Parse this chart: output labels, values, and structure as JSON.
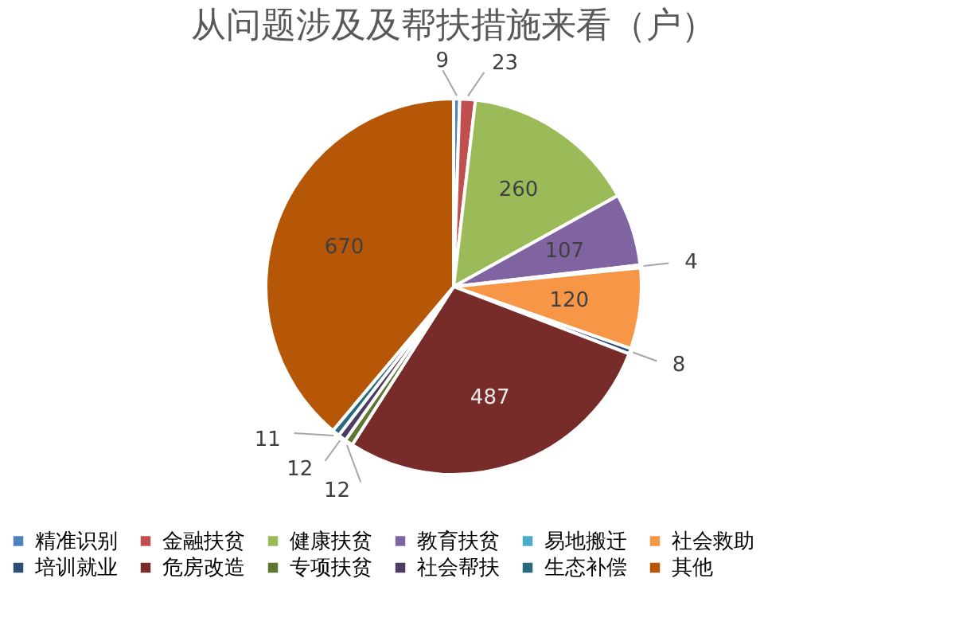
{
  "chart_data": {
    "type": "pie",
    "title": "从问题涉及及帮扶措施来看（户）",
    "categories": [
      "精准识别",
      "金融扶贫",
      "健康扶贫",
      "教育扶贫",
      "易地搬迁",
      "社会救助",
      "培训就业",
      "危房改造",
      "专项扶贫",
      "社会帮扶",
      "生态补偿",
      "其他"
    ],
    "values": [
      9,
      23,
      260,
      107,
      4,
      120,
      8,
      487,
      12,
      12,
      11,
      670
    ],
    "colors": [
      "#4f81bd",
      "#c0504d",
      "#9bbb59",
      "#8064a2",
      "#4bacc6",
      "#f79646",
      "#2c4d75",
      "#772c2a",
      "#5f7530",
      "#4d3b62",
      "#276a7c",
      "#b65708"
    ],
    "data_labels": true,
    "legend": "bottom"
  }
}
